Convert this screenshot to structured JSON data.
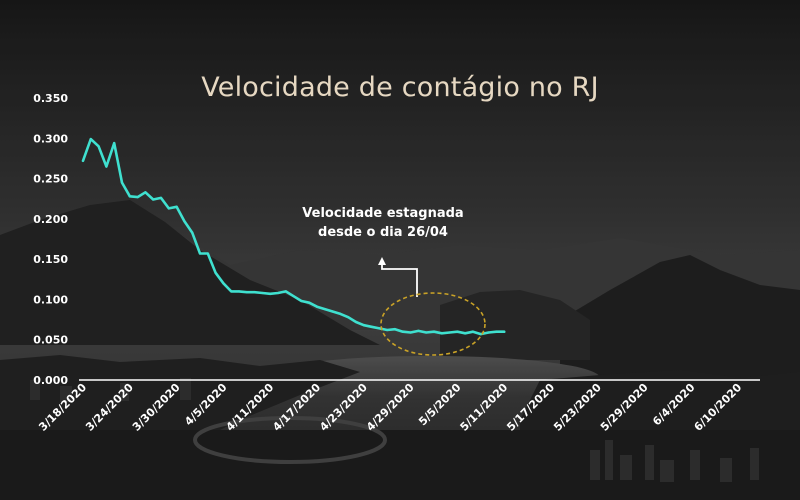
{
  "chart_data": {
    "type": "line",
    "title": "Velocidade de contágio no RJ",
    "xlabel": "",
    "ylabel": "",
    "ylim": [
      0,
      0.35
    ],
    "y_ticks": [
      "0.000",
      "0.050",
      "0.100",
      "0.150",
      "0.200",
      "0.250",
      "0.300",
      "0.350"
    ],
    "x_ticks": [
      "3/18/2020",
      "3/24/2020",
      "3/30/2020",
      "4/5/2020",
      "4/11/2020",
      "4/17/2020",
      "4/23/2020",
      "4/29/2020",
      "5/5/2020",
      "5/11/2020",
      "5/17/2020",
      "5/23/2020",
      "5/29/2020",
      "6/4/2020",
      "6/10/2020"
    ],
    "x_start": "3/18/2020",
    "grid": false,
    "line_color": "#3fe0cf",
    "series": [
      {
        "values": [
          0.272,
          0.299,
          0.29,
          0.265,
          0.294,
          0.245,
          0.228,
          0.227,
          0.233,
          0.224,
          0.226,
          0.213,
          0.215,
          0.197,
          0.183,
          0.157,
          0.157,
          0.133,
          0.12,
          0.11,
          0.11,
          0.109,
          0.109,
          0.108,
          0.107,
          0.108,
          0.11,
          0.104,
          0.098,
          0.096,
          0.091,
          0.088,
          0.085,
          0.082,
          0.078,
          0.072,
          0.068,
          0.066,
          0.064,
          0.062,
          0.063,
          0.06,
          0.059,
          0.061,
          0.059,
          0.06,
          0.058,
          0.059,
          0.06,
          0.058,
          0.06,
          0.057,
          0.059,
          0.06,
          0.06
        ]
      }
    ],
    "annotation": {
      "lines": [
        "Velocidade estagnada",
        "desde o dia 26/04"
      ],
      "highlight_color": "#c9a227"
    }
  }
}
